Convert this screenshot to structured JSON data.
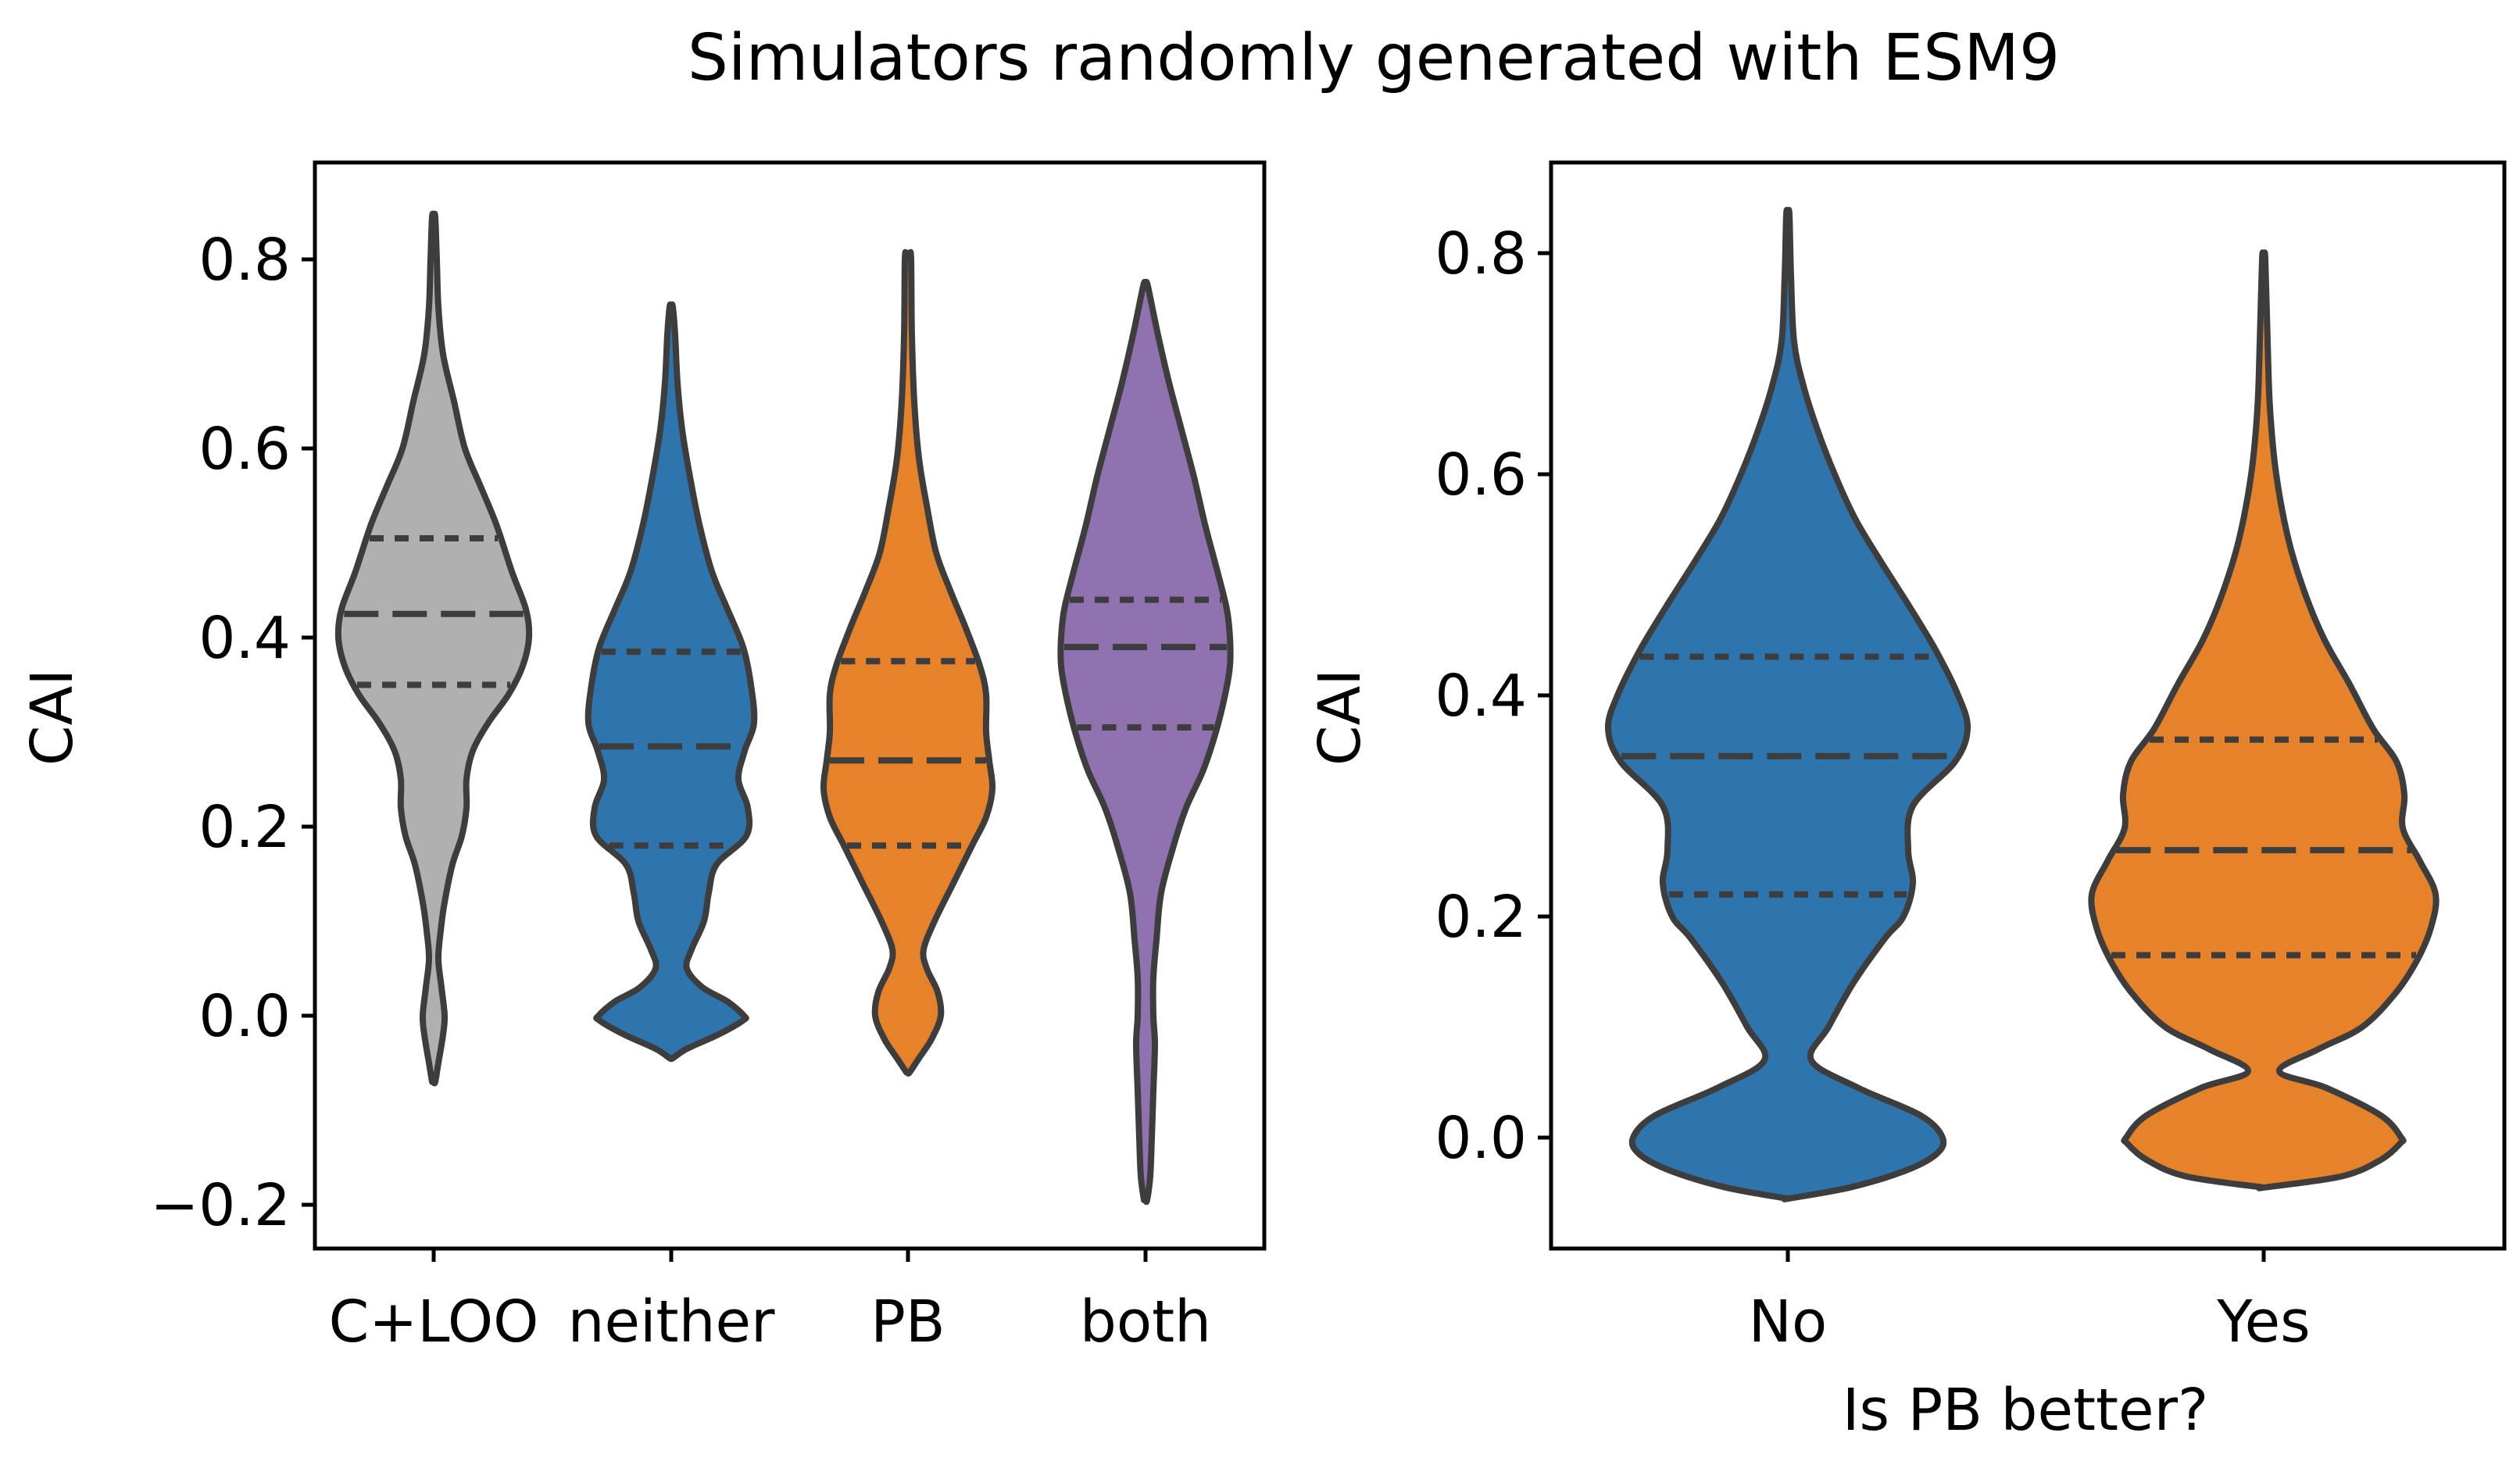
{
  "title": "Simulators randomly generated with ESM9",
  "colors": {
    "grey": "#b0b0b0",
    "blue": "#2e75ad",
    "orange": "#e6822a",
    "purple": "#9072b0",
    "outline": "#3d3d3d"
  },
  "chart_data": [
    {
      "type": "violin",
      "title": "",
      "xlabel": "",
      "ylabel": "CAI",
      "ylim": [
        -0.24,
        0.9
      ],
      "yticks": [
        "0.8",
        "0.6",
        "0.4",
        "0.2",
        "0.0",
        "−0.2"
      ],
      "categories": [
        "C+LOO",
        "neither",
        "PB",
        "both"
      ],
      "series": [
        {
          "category": "C+LOO",
          "color": "#b0b0b0",
          "quartiles": [
            0.35,
            0.425,
            0.505
          ],
          "range": [
            -0.07,
            0.845
          ]
        },
        {
          "category": "neither",
          "color": "#2e75ad",
          "quartiles": [
            0.18,
            0.285,
            0.385
          ],
          "range": [
            -0.045,
            0.75
          ]
        },
        {
          "category": "PB",
          "color": "#e6822a",
          "quartiles": [
            0.18,
            0.27,
            0.375
          ],
          "range": [
            -0.06,
            0.805
          ]
        },
        {
          "category": "both",
          "color": "#9072b0",
          "quartiles": [
            0.305,
            0.39,
            0.44
          ],
          "range": [
            -0.195,
            0.775
          ]
        }
      ]
    },
    {
      "type": "violin",
      "title": "",
      "xlabel": "Is PB better?",
      "ylabel": "CAI",
      "ylim": [
        -0.1,
        0.88
      ],
      "yticks": [
        "0.8",
        "0.6",
        "0.4",
        "0.2",
        "0.0"
      ],
      "categories": [
        "No",
        "Yes"
      ],
      "series": [
        {
          "category": "No",
          "color": "#2e75ad",
          "quartiles": [
            0.22,
            0.345,
            0.435
          ],
          "range": [
            -0.055,
            0.835
          ]
        },
        {
          "category": "Yes",
          "color": "#e6822a",
          "quartiles": [
            0.165,
            0.26,
            0.36
          ],
          "range": [
            -0.045,
            0.795
          ]
        }
      ]
    }
  ]
}
